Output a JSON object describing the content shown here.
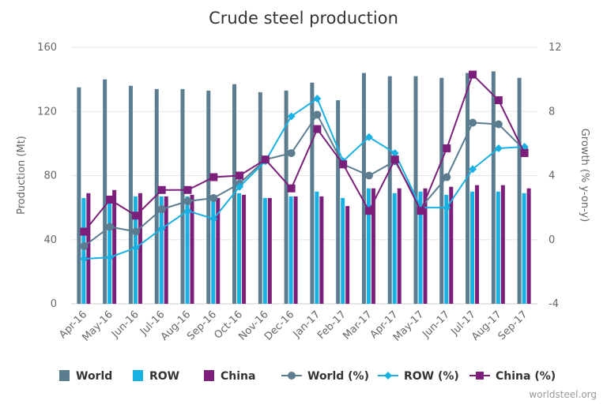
{
  "chart_data": {
    "type": "bar",
    "title": "Crude steel production",
    "categories": [
      "Apr-16",
      "May-16",
      "Jun-16",
      "Jul-16",
      "Aug-16",
      "Sep-16",
      "Oct-16",
      "Nov-16",
      "Dec-16",
      "Jan-17",
      "Feb-17",
      "Mar-17",
      "Apr-17",
      "May-17",
      "Jun-17",
      "Jul-17",
      "Aug-17",
      "Sep-17"
    ],
    "y_left": {
      "label": "Production (Mt)",
      "min": 0,
      "max": 160,
      "ticks": [
        0,
        40,
        80,
        120,
        160
      ]
    },
    "y_right": {
      "label": "Growth (% y-on-y)",
      "min": -4,
      "max": 12,
      "ticks": [
        -4,
        0,
        4,
        8,
        12
      ]
    },
    "grid": true,
    "legend_position": "bottom",
    "series": [
      {
        "name": "World",
        "type": "bar",
        "axis": "left",
        "color": "#5b7d8f",
        "values": [
          135,
          140,
          136,
          134,
          134,
          133,
          137,
          132,
          133,
          138,
          127,
          144,
          142,
          142,
          141,
          144,
          145,
          141
        ]
      },
      {
        "name": "ROW",
        "type": "bar",
        "axis": "left",
        "color": "#19b0e3",
        "values": [
          66,
          66,
          67,
          67,
          67,
          67,
          69,
          66,
          67,
          70,
          66,
          72,
          69,
          70,
          68,
          70,
          70,
          69
        ]
      },
      {
        "name": "China",
        "type": "bar",
        "axis": "left",
        "color": "#7b1f7b",
        "values": [
          69,
          71,
          69,
          67,
          68,
          66,
          68,
          66,
          67,
          67,
          61,
          72,
          72,
          72,
          73,
          74,
          74,
          72
        ]
      },
      {
        "name": "World (%)",
        "type": "line",
        "axis": "right",
        "color": "#5b7d8f",
        "marker": "circle",
        "values": [
          -0.4,
          0.8,
          0.5,
          1.9,
          2.4,
          2.6,
          3.5,
          5.0,
          5.4,
          7.8,
          4.7,
          4.0,
          4.9,
          2.0,
          3.9,
          7.3,
          7.2,
          5.6
        ]
      },
      {
        "name": "ROW (%)",
        "type": "line",
        "axis": "right",
        "color": "#19b0e3",
        "marker": "diamond",
        "values": [
          -1.2,
          -1.1,
          -0.5,
          0.7,
          1.8,
          1.3,
          3.3,
          4.9,
          7.7,
          8.8,
          4.9,
          6.4,
          5.4,
          2.0,
          2.0,
          4.4,
          5.7,
          5.8
        ]
      },
      {
        "name": "China (%)",
        "type": "line",
        "axis": "right",
        "color": "#7b1f7b",
        "marker": "square",
        "values": [
          0.5,
          2.5,
          1.5,
          3.1,
          3.1,
          3.9,
          4.0,
          5.0,
          3.2,
          6.9,
          4.7,
          1.8,
          5.0,
          1.8,
          5.7,
          10.3,
          8.7,
          5.4
        ]
      }
    ]
  },
  "credit": "worldsteel.org"
}
